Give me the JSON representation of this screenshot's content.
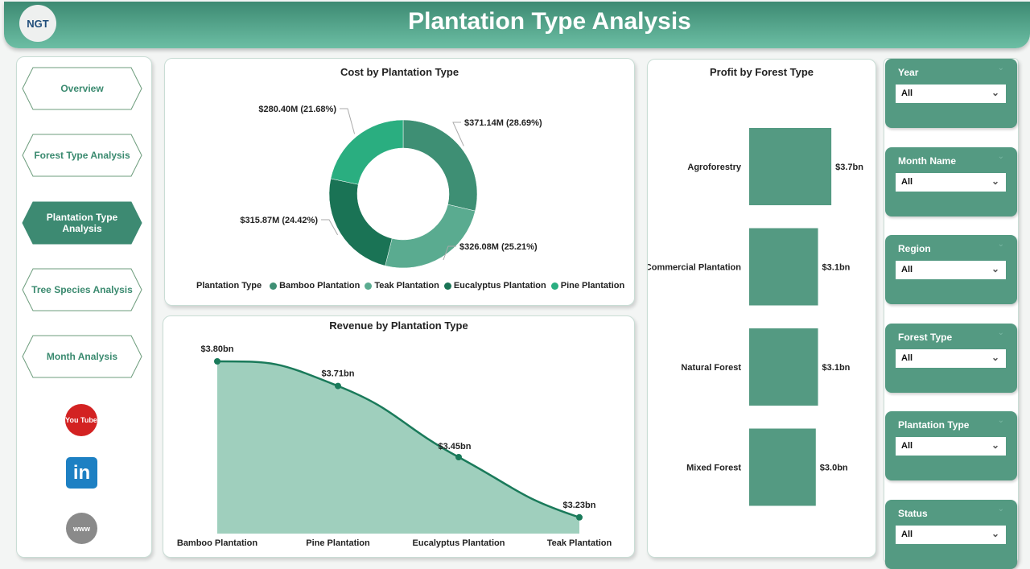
{
  "header": {
    "title": "Plantation Type Analysis",
    "logo_text": "NGT"
  },
  "nav": [
    {
      "label": "Overview"
    },
    {
      "label": "Forest Type Analysis"
    },
    {
      "label": "Plantation Type Analysis",
      "active": true
    },
    {
      "label": "Tree Species Analysis"
    },
    {
      "label": "Month Analysis"
    }
  ],
  "social": {
    "youtube": "You Tube",
    "linkedin": "in",
    "web": "www"
  },
  "colors": {
    "primary": "#549a82",
    "bamboo": "#3e8f74",
    "teak": "#5aab90",
    "eucalyptus": "#1a7355",
    "pine": "#2aae80"
  },
  "chart_data": [
    {
      "type": "pie",
      "title": "Cost by Plantation Type",
      "legend_title": "Plantation Type",
      "legend_position": "bottom",
      "slices": [
        {
          "name": "Bamboo Plantation",
          "value": 371.14,
          "label": "$371.14M (28.69%)",
          "pct": 28.69
        },
        {
          "name": "Teak Plantation",
          "value": 326.08,
          "label": "$326.08M (25.21%)",
          "pct": 25.21
        },
        {
          "name": "Eucalyptus Plantation",
          "value": 315.87,
          "label": "$315.87M (24.42%)",
          "pct": 24.42
        },
        {
          "name": "Pine Plantation",
          "value": 280.4,
          "label": "$280.40M (21.68%)",
          "pct": 21.68
        }
      ]
    },
    {
      "type": "area",
      "title": "Revenue by Plantation Type",
      "categories": [
        "Bamboo Plantation",
        "Pine Plantation",
        "Eucalyptus Plantation",
        "Teak Plantation"
      ],
      "values": [
        3.8,
        3.71,
        3.45,
        3.23
      ],
      "labels": [
        "$3.80bn",
        "$3.71bn",
        "$3.45bn",
        "$3.23bn"
      ],
      "ylim": [
        3.2,
        3.8
      ]
    },
    {
      "type": "bar",
      "title": "Profit by Forest Type",
      "categories": [
        "Agroforestry",
        "Commercial Plantation",
        "Natural Forest",
        "Mixed Forest"
      ],
      "values": [
        3.7,
        3.1,
        3.1,
        3.0
      ],
      "labels": [
        "$3.7bn",
        "$3.1bn",
        "$3.1bn",
        "$3.0bn"
      ]
    }
  ],
  "filters": [
    {
      "label": "Year",
      "value": "All"
    },
    {
      "label": "Month Name",
      "value": "All"
    },
    {
      "label": "Region",
      "value": "All"
    },
    {
      "label": "Forest Type",
      "value": "All"
    },
    {
      "label": "Plantation Type",
      "value": "All"
    },
    {
      "label": "Status",
      "value": "All"
    }
  ]
}
